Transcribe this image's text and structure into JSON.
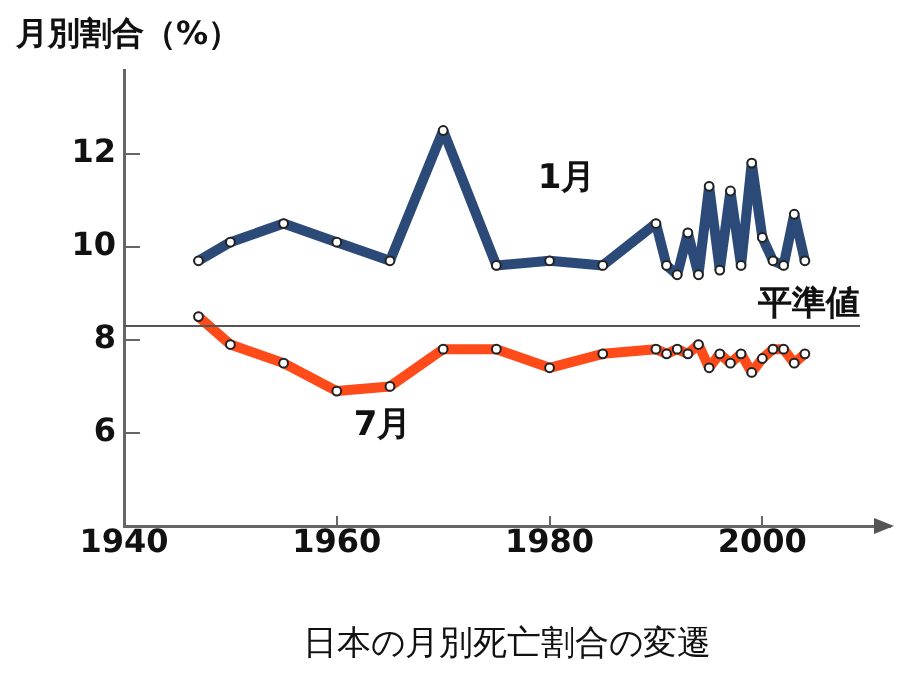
{
  "chart_data": {
    "type": "line",
    "ylabel": "月別割合（%）",
    "xlabel": "日本の月別死亡割合の変遷",
    "xlim": [
      1940,
      2012
    ],
    "xticks": [
      1940,
      1960,
      1980,
      2000
    ],
    "ylim": [
      4,
      13.8
    ],
    "yticks": [
      6,
      8,
      10,
      12
    ],
    "grid": false,
    "legend": false,
    "marker": "circle",
    "line_style": "solid",
    "ref_lines": [
      {
        "axis": "y",
        "value": 8.3,
        "label": "平準値",
        "color": "#555555"
      }
    ],
    "series": [
      {
        "name": "1月",
        "color": "#2c4a78",
        "x": [
          1947,
          1950,
          1955,
          1960,
          1965,
          1970,
          1975,
          1980,
          1985,
          1990,
          1991,
          1992,
          1993,
          1994,
          1995,
          1996,
          1997,
          1998,
          1999,
          2000,
          2001,
          2002,
          2003,
          2004
        ],
        "values": [
          9.7,
          10.1,
          10.5,
          10.1,
          9.7,
          12.5,
          9.6,
          9.7,
          9.6,
          10.5,
          9.6,
          9.4,
          10.3,
          9.4,
          11.3,
          9.5,
          11.2,
          9.6,
          11.8,
          10.2,
          9.7,
          9.6,
          10.7,
          9.7
        ]
      },
      {
        "name": "7月",
        "color": "#ff4a1a",
        "x": [
          1947,
          1950,
          1955,
          1960,
          1965,
          1970,
          1975,
          1980,
          1985,
          1990,
          1991,
          1992,
          1993,
          1994,
          1995,
          1996,
          1997,
          1998,
          1999,
          2000,
          2001,
          2002,
          2003,
          2004
        ],
        "values": [
          8.5,
          7.9,
          7.5,
          6.9,
          7.0,
          7.8,
          7.8,
          7.4,
          7.7,
          7.8,
          7.7,
          7.8,
          7.7,
          7.9,
          7.4,
          7.7,
          7.5,
          7.7,
          7.3,
          7.6,
          7.8,
          7.8,
          7.5,
          7.7
        ]
      }
    ]
  }
}
